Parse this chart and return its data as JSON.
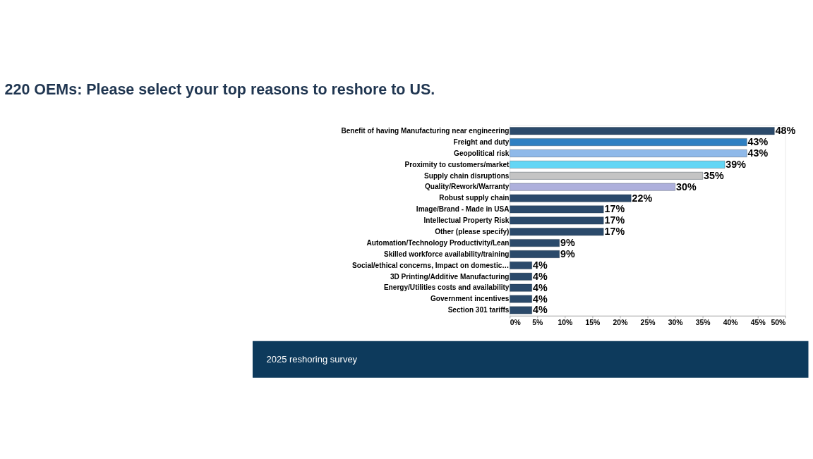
{
  "chart_data": {
    "type": "bar",
    "orientation": "horizontal",
    "title": "220 OEMs: Please select your top reasons to reshore to US.",
    "categories": [
      "Benefit of having Manufacturing near engineering",
      "Freight and duty",
      "Geopolitical risk",
      "Proximity to customers/market",
      "Supply chain disruptions",
      "Quality/Rework/Warranty",
      "Robust supply chain",
      "Image/Brand - Made in USA",
      "Intellectual Property Risk",
      "Other (please specify)",
      "Automation/Technology Productivity/Lean",
      "Skilled workforce availability/training",
      "Social/ethical concerns, Impact on domestic…",
      "3D Printing/Additive Manufacturing",
      "Energy/Utilities costs and availability",
      "Government incentives",
      "Section 301 tariffs"
    ],
    "values": [
      48,
      43,
      43,
      39,
      35,
      30,
      22,
      17,
      17,
      17,
      9,
      9,
      4,
      4,
      4,
      4,
      4
    ],
    "value_labels": [
      "48%",
      "43%",
      "43%",
      "39%",
      "35%",
      "30%",
      "22%",
      "17%",
      "17%",
      "17%",
      "9%",
      "9%",
      "4%",
      "4%",
      "4%",
      "4%",
      "4%"
    ],
    "colors": [
      "#2b4a6b",
      "#2f80c2",
      "#8fb9e9",
      "#63d6f5",
      "#c4c4c4",
      "#aeb0dc",
      "#2b4a6b",
      "#2b4a6b",
      "#2b4a6b",
      "#2b4a6b",
      "#2b4a6b",
      "#2b4a6b",
      "#2b4a6b",
      "#2b4a6b",
      "#2b4a6b",
      "#2b4a6b",
      "#2b4a6b"
    ],
    "xlim": [
      0,
      50
    ],
    "xticks": [
      {
        "value": 0,
        "label": "0%"
      },
      {
        "value": 5,
        "label": "5%"
      },
      {
        "value": 10,
        "label": "10%"
      },
      {
        "value": 15,
        "label": "15%"
      },
      {
        "value": 20,
        "label": "20%"
      },
      {
        "value": 25,
        "label": "25%"
      },
      {
        "value": 30,
        "label": "30%"
      },
      {
        "value": 35,
        "label": "35%"
      },
      {
        "value": 40,
        "label": "40%"
      },
      {
        "value": 45,
        "label": "45%"
      },
      {
        "value": 50,
        "label": "50%"
      }
    ],
    "grid": false,
    "annotations": [
      "2025 reshoring survey"
    ]
  }
}
